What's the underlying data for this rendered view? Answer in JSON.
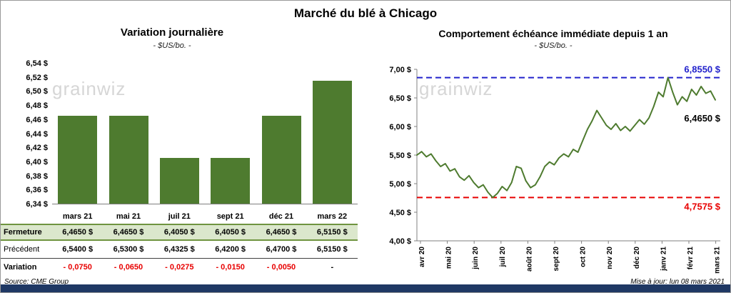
{
  "title": "Marché du blé à Chicago",
  "watermark": "grainwiz",
  "footer": {
    "source": "Source: CME Group",
    "updated": "Mise à jour: lun 08 mars 2021"
  },
  "colors": {
    "green": "#4e7b2f",
    "row_green_bg": "#dbe7cc",
    "row_green_border": "#6f9440",
    "red": "#e80000",
    "blue": "#2222cc",
    "navy_bar": "#1f3864",
    "axis": "#808080",
    "watermark": "#d6d6d6"
  },
  "table": {
    "rows": [
      {
        "label": "Fermeture",
        "style": "fermeture",
        "values": [
          "6,4650 $",
          "6,4650 $",
          "6,4050 $",
          "6,4050 $",
          "6,4650 $",
          "6,5150 $"
        ]
      },
      {
        "label": "Précédent",
        "style": "precedent",
        "values": [
          "6,5400 $",
          "6,5300 $",
          "6,4325 $",
          "6,4200 $",
          "6,4700 $",
          "6,5150 $"
        ]
      },
      {
        "label": "Variation",
        "style": "variation",
        "value_color": "#e80000",
        "values": [
          "- 0,0750",
          "- 0,0650",
          "- 0,0275",
          "- 0,0150",
          "- 0,0050",
          "-"
        ]
      }
    ]
  },
  "chart_data": [
    {
      "type": "bar",
      "title": "Variation journalière",
      "subtitle": "- $US/bo. -",
      "categories": [
        "mars 21",
        "mai 21",
        "juil 21",
        "sept 21",
        "déc 21",
        "mars 22"
      ],
      "values": [
        6.465,
        6.465,
        6.405,
        6.405,
        6.465,
        6.515
      ],
      "ylim": [
        6.34,
        6.54
      ],
      "ytick_labels": [
        "6,54 $",
        "6,52 $",
        "6,50 $",
        "6,48 $",
        "6,46 $",
        "6,44 $",
        "6,42 $",
        "6,40 $",
        "6,38 $",
        "6,36 $",
        "6,34 $"
      ],
      "bar_color": "#4e7b2f",
      "grid": false,
      "legend": false
    },
    {
      "type": "line",
      "title": "Comportement échéance immédiate depuis 1 an",
      "subtitle": "- $US/bo. -",
      "x_labels": [
        "avr 20",
        "mai 20",
        "juin 20",
        "juil 20",
        "août 20",
        "sept 20",
        "oct 20",
        "nov 20",
        "déc 20",
        "janv 21",
        "févr 21",
        "mars 21"
      ],
      "ylim": [
        4.0,
        7.0
      ],
      "ytick_labels": [
        "7,00 $",
        "6,50 $",
        "6,00 $",
        "5,50 $",
        "5,00 $",
        "4,50 $",
        "4,00 $"
      ],
      "grid": false,
      "legend": false,
      "series": [
        {
          "name": "échéance immédiate",
          "color": "#4e7b2f",
          "values": [
            5.5,
            5.56,
            5.47,
            5.52,
            5.4,
            5.3,
            5.35,
            5.22,
            5.26,
            5.12,
            5.06,
            5.14,
            5.02,
            4.93,
            4.98,
            4.85,
            4.7575,
            4.83,
            4.95,
            4.88,
            5.02,
            5.3,
            5.27,
            5.05,
            4.93,
            4.98,
            5.12,
            5.3,
            5.38,
            5.33,
            5.45,
            5.52,
            5.47,
            5.6,
            5.55,
            5.75,
            5.95,
            6.1,
            6.28,
            6.15,
            6.02,
            5.95,
            6.05,
            5.93,
            6.0,
            5.92,
            6.02,
            6.12,
            6.04,
            6.15,
            6.35,
            6.6,
            6.52,
            6.855,
            6.6,
            6.38,
            6.52,
            6.44,
            6.65,
            6.55,
            6.7,
            6.58,
            6.62,
            6.465
          ]
        }
      ],
      "annotations": {
        "high": {
          "value": 6.855,
          "label": "6,8550 $",
          "color": "#2222cc",
          "style": "dashed"
        },
        "low": {
          "value": 4.7575,
          "label": "4,7575 $",
          "color": "#e80000",
          "style": "dashed"
        },
        "last": {
          "value": 6.465,
          "label": "6,4650 $",
          "color": "#000000"
        }
      }
    }
  ]
}
